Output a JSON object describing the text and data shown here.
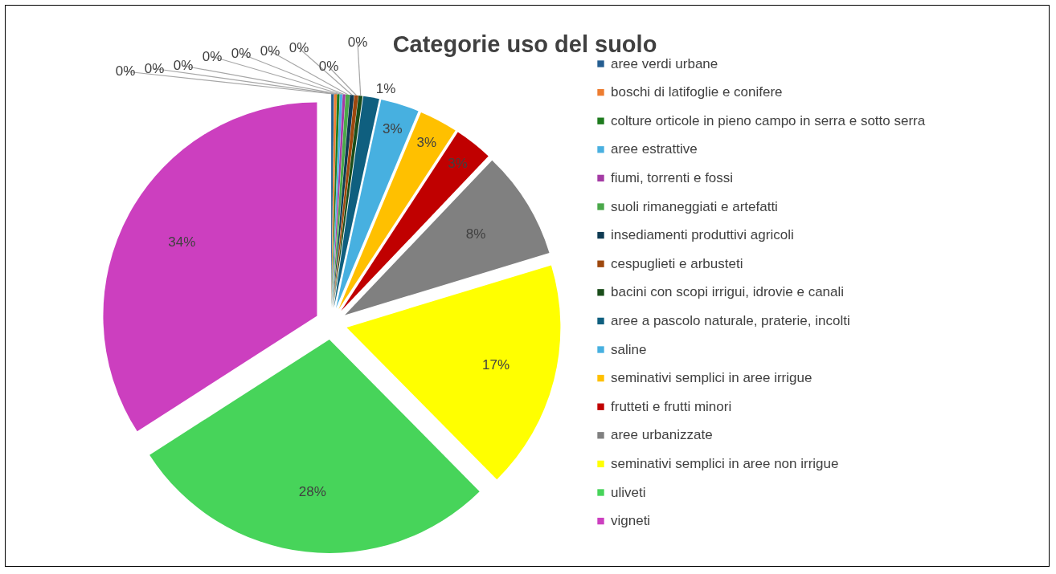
{
  "chart_data": {
    "type": "pie",
    "title": "Categorie uso del suolo",
    "categories": [
      "aree verdi urbane",
      "boschi di latifoglie e conifere",
      "colture orticole in pieno campo in serra e sotto serra",
      "aree estrattive",
      "fiumi, torrenti e fossi",
      "suoli rimaneggiati e artefatti",
      "insediamenti produttivi agricoli",
      "cespuglieti e arbusteti",
      "bacini con scopi irrigui, idrovie e canali",
      "aree a pascolo naturale, praterie, incolti",
      "saline",
      "seminativi semplici in aree irrigue",
      "frutteti e frutti minori",
      "aree urbanizzate",
      "seminativi semplici in aree non irrigue",
      "uliveti",
      "vigneti"
    ],
    "values": [
      0.2,
      0.2,
      0.2,
      0.2,
      0.2,
      0.3,
      0.3,
      0.3,
      0.3,
      1.2,
      2.9,
      2.9,
      2.9,
      8.2,
      17.3,
      28.3,
      34.1
    ],
    "value_labels": [
      "0%",
      "0%",
      "0%",
      "0%",
      "0%",
      "0%",
      "0%",
      "0%",
      "0%",
      "1%",
      "3%",
      "3%",
      "3%",
      "8%",
      "17%",
      "28%",
      "34%"
    ],
    "colors": [
      "#255e91",
      "#ed7d31",
      "#1e7b1e",
      "#4ab0e0",
      "#a43ba4",
      "#4aa84a",
      "#0e3a52",
      "#9e480e",
      "#1a4d1a",
      "#0f5f7f",
      "#47b0e0",
      "#ffc000",
      "#c00000",
      "#808080",
      "#ffff00",
      "#47d45a",
      "#cc3fbf"
    ],
    "legend": "right"
  }
}
